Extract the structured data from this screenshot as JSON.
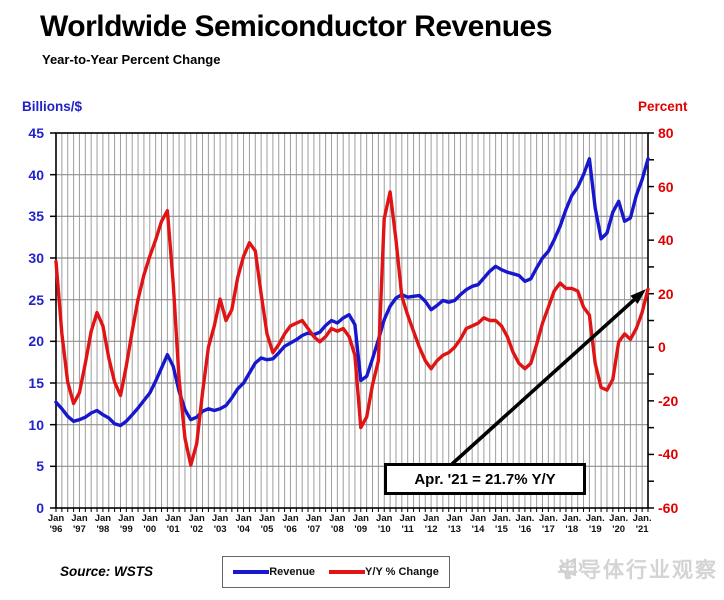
{
  "header": {
    "title": "Worldwide Semiconductor Revenues",
    "subtitle": "Year-to-Year Percent Change"
  },
  "axes": {
    "left_title": "Billions/$",
    "right_title": "Percent",
    "left_ticks": [
      45,
      40,
      35,
      30,
      25,
      20,
      15,
      10,
      5,
      0
    ],
    "right_tick_labels": [
      80,
      60,
      40,
      20,
      0,
      -20,
      -40,
      -60
    ],
    "right_minor_tick_step": 10,
    "x_months": [
      "Jan",
      "Jan",
      "Jan",
      "Jan",
      "Jan",
      "Jan",
      "Jan",
      "Jan",
      "Jan",
      "Jan",
      "Jan",
      "Jan",
      "Jan",
      "Jan",
      "Jan",
      "Jan",
      "Jan",
      "Jan",
      "Jan",
      "Jan.",
      "Jan.",
      "Jan.",
      "Jan.",
      "Jan.",
      "Jan.",
      "Jan."
    ],
    "x_years": [
      "'96",
      "'97",
      "'98",
      "'99",
      "'00",
      "'01",
      "'02",
      "'03",
      "'04",
      "'05",
      "'06",
      "'07",
      "'08",
      "'09",
      "'10",
      "'11",
      "'12",
      "'13",
      "'14",
      "'15",
      "'16",
      "'17",
      "'18",
      "'19",
      "'20",
      "'21"
    ]
  },
  "legend": {
    "items": [
      {
        "label": "Revenue",
        "color": "#1717cd"
      },
      {
        "label": "Y/Y % Change",
        "color": "#e01414"
      }
    ]
  },
  "annotation": {
    "text": "Apr. '21 = 21.7% Y/Y"
  },
  "source": "Source: WSTS",
  "watermark": {
    "text": "半导体行业观察",
    "logo": "megaphone-icon"
  },
  "colors": {
    "revenue_line": "#1717cd",
    "yoy_line": "#e01414",
    "left_axis_text": "#2222cc",
    "right_axis_text": "#e00000",
    "grid": "#9e9e9e",
    "plot_border": "#000000",
    "background": "#ffffff",
    "watermark": "#d4d4d4"
  },
  "chart_data": {
    "type": "line",
    "title": "Worldwide Semiconductor Revenues",
    "subtitle": "Year-to-Year Percent Change",
    "x_start": 1996.0,
    "x_step_years": 0.25,
    "x_end": 2021.25,
    "x_tick_years": [
      1996,
      1997,
      1998,
      1999,
      2000,
      2001,
      2002,
      2003,
      2004,
      2005,
      2006,
      2007,
      2008,
      2009,
      2010,
      2011,
      2012,
      2013,
      2014,
      2015,
      2016,
      2017,
      2018,
      2019,
      2020,
      2021
    ],
    "ylim_left": [
      0,
      45
    ],
    "ylim_right": [
      -60,
      80
    ],
    "grid": true,
    "legend_position": "bottom-center",
    "annotation": "Apr. '21 = 21.7% Y/Y",
    "annotation_points_to": {
      "x": 2021.25,
      "y_right_axis": 21.7
    },
    "series": [
      {
        "name": "Revenue",
        "axis": "left",
        "unit": "billions of dollars",
        "color": "#1717cd",
        "values": [
          12.7,
          11.9,
          11.0,
          10.4,
          10.6,
          10.9,
          11.4,
          11.7,
          11.2,
          10.8,
          10.1,
          9.9,
          10.4,
          11.2,
          12.0,
          12.9,
          13.8,
          15.2,
          16.8,
          18.4,
          17.0,
          14.0,
          11.8,
          10.6,
          10.9,
          11.6,
          11.9,
          11.7,
          11.9,
          12.3,
          13.2,
          14.3,
          15.0,
          16.2,
          17.4,
          18.0,
          17.8,
          17.9,
          18.6,
          19.4,
          19.8,
          20.2,
          20.7,
          21.0,
          20.8,
          21.1,
          21.9,
          22.5,
          22.2,
          22.8,
          23.2,
          22.0,
          15.3,
          15.8,
          17.9,
          20.2,
          22.6,
          24.2,
          25.2,
          25.6,
          25.3,
          25.4,
          25.5,
          24.8,
          23.8,
          24.3,
          24.9,
          24.7,
          24.9,
          25.6,
          26.2,
          26.6,
          26.8,
          27.6,
          28.4,
          29.0,
          28.6,
          28.3,
          28.1,
          27.9,
          27.2,
          27.5,
          28.8,
          30.0,
          30.8,
          32.2,
          33.8,
          35.8,
          37.5,
          38.5,
          40.0,
          41.9,
          36.0,
          32.3,
          33.0,
          35.5,
          36.8,
          34.4,
          34.8,
          37.5,
          39.4,
          41.9
        ]
      },
      {
        "name": "Y/Y % Change",
        "axis": "right",
        "unit": "percent",
        "color": "#e01414",
        "values": [
          32,
          5,
          -13,
          -21,
          -17,
          -6,
          6,
          13,
          8,
          -4,
          -13,
          -18,
          -7,
          6,
          18,
          27,
          34,
          40,
          47,
          51,
          24,
          -12,
          -34,
          -44,
          -36,
          -17,
          0,
          8,
          18,
          10,
          14,
          26,
          34,
          39,
          36,
          20,
          5,
          -2,
          1,
          5,
          8,
          9,
          10,
          7,
          4,
          2,
          4,
          7,
          6,
          7,
          4,
          -3,
          -30,
          -26,
          -14,
          -5,
          48,
          58,
          40,
          19,
          12,
          6,
          0,
          -5,
          -8,
          -5,
          -3,
          -2,
          0,
          3,
          7,
          8,
          9,
          11,
          10,
          10,
          8,
          4,
          -2,
          -6,
          -8,
          -6,
          1,
          9,
          15,
          21,
          24,
          22,
          22,
          21,
          15,
          12,
          -6,
          -15,
          -16,
          -12,
          2,
          5,
          3,
          7,
          13,
          21.7
        ]
      }
    ]
  }
}
